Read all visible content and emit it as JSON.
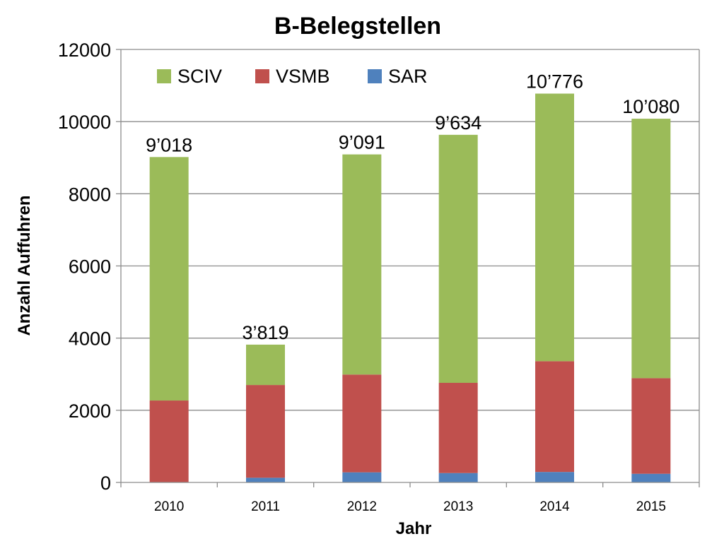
{
  "chart_data": {
    "type": "bar",
    "stacked": true,
    "title": "B-Belegstellen",
    "xlabel": "Jahr",
    "ylabel": "Anzahl Auffuhren",
    "ylim": [
      0,
      12000
    ],
    "yticks": [
      "0",
      "2000",
      "4000",
      "6000",
      "8000",
      "10000",
      "12000"
    ],
    "ytick_values": [
      0,
      2000,
      4000,
      6000,
      8000,
      10000,
      12000
    ],
    "grid": true,
    "legend_position": "top-left",
    "categories": [
      "2010",
      "2011",
      "2012",
      "2013",
      "2014",
      "2015"
    ],
    "series": [
      {
        "name": "SAR",
        "color": "#4f81bd",
        "values": [
          0,
          130,
          280,
          260,
          290,
          240
        ]
      },
      {
        "name": "VSMB",
        "color": "#c0504d",
        "values": [
          2270,
          2570,
          2710,
          2500,
          3070,
          2650
        ]
      },
      {
        "name": "SCIV",
        "color": "#9bbb59",
        "values": [
          6748,
          1119,
          6101,
          6874,
          7416,
          7190
        ]
      }
    ],
    "legend_order": [
      "SCIV",
      "VSMB",
      "SAR"
    ],
    "totals": [
      9018,
      3819,
      9091,
      9634,
      10776,
      10080
    ],
    "total_labels": [
      "9’018",
      "3’819",
      "9’091",
      "9’634",
      "10’776",
      "10’080"
    ]
  }
}
